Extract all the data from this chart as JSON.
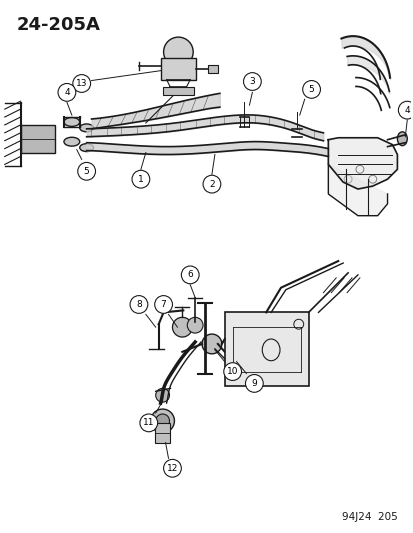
{
  "title": "24–205A",
  "footer": "94J24  205",
  "bg_color": "#f5f5f0",
  "line_color": "#1a1a1a",
  "lw_main": 1.0,
  "lw_thick": 2.8,
  "lw_thin": 0.7,
  "lw_hose": 3.5,
  "upper_diagram": {
    "ymin": 0.5,
    "ymax": 1.0
  },
  "lower_diagram": {
    "ymin": 0.02,
    "ymax": 0.5
  }
}
